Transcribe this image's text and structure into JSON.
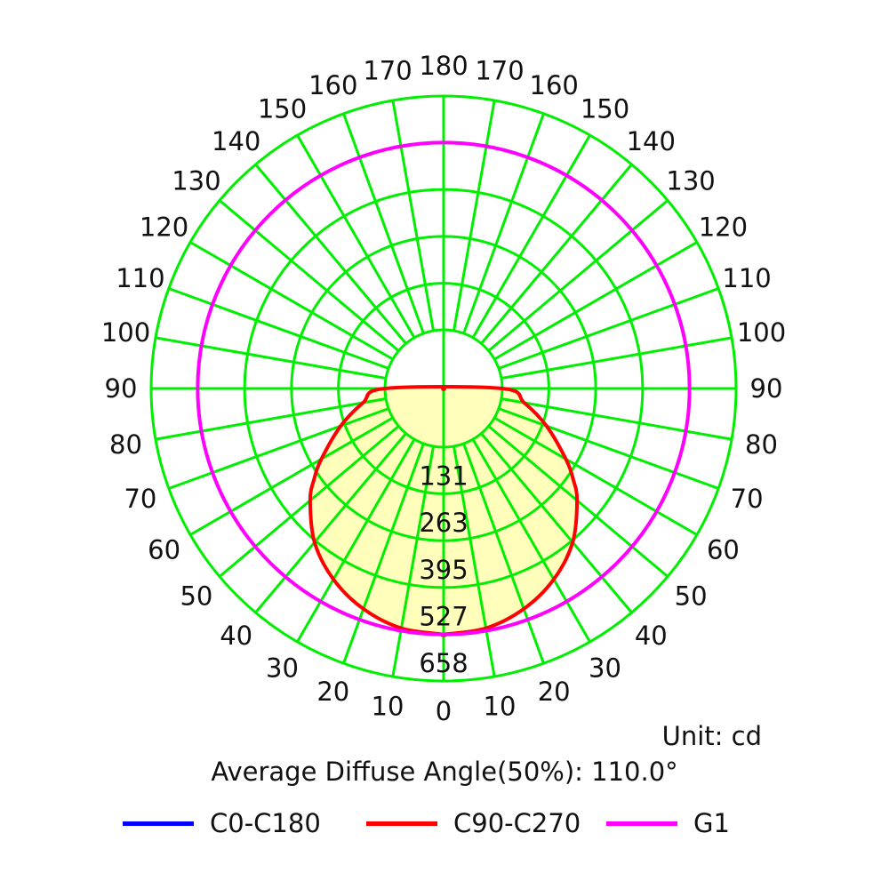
{
  "chart_data": {
    "type": "polar",
    "angle_labels_left": [
      "180",
      "170",
      "160",
      "150",
      "140",
      "130",
      "120",
      "110",
      "100",
      "90",
      "80",
      "70",
      "60",
      "50",
      "40",
      "30",
      "20",
      "10",
      "0"
    ],
    "angle_labels_right": [
      "170",
      "160",
      "150",
      "140",
      "130",
      "120",
      "110",
      "100",
      "90",
      "80",
      "70",
      "60",
      "50",
      "40",
      "30",
      "20",
      "10"
    ],
    "radial_ticks": [
      131,
      263,
      395,
      527,
      658
    ],
    "rmax": 658,
    "grid": true,
    "unit": "Unit: cd",
    "average_angle": "Average Diffuse Angle(50%): 110.0°",
    "series": [
      {
        "name": "C0-C180",
        "color": "#0000ff",
        "angles": [
          0,
          10,
          20,
          30,
          40,
          50,
          55,
          60,
          70,
          80,
          90
        ],
        "values": [
          527,
          520,
          495,
          455,
          400,
          325,
          280,
          232,
          143,
          65,
          0
        ]
      },
      {
        "name": "C90-C270",
        "color": "#ff0000",
        "angles": [
          0,
          10,
          20,
          30,
          40,
          50,
          55,
          60,
          70,
          80,
          90
        ],
        "values": [
          527,
          520,
          495,
          455,
          400,
          325,
          280,
          232,
          143,
          65,
          0
        ]
      },
      {
        "name": "G1",
        "color": "#ff00ff",
        "constant": 527
      }
    ]
  },
  "colors": {
    "grid": "#00ee00",
    "fill": "#ffffbb"
  }
}
